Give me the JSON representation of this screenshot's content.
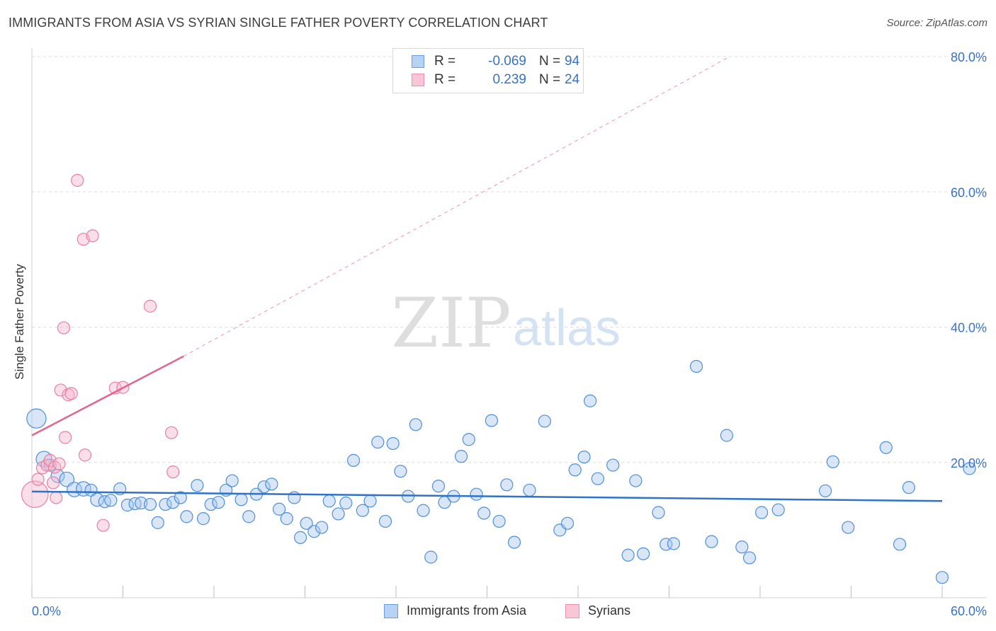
{
  "header": {
    "title": "IMMIGRANTS FROM ASIA VS SYRIAN SINGLE FATHER POVERTY CORRELATION CHART",
    "source": "Source: ZipAtlas.com"
  },
  "watermark": {
    "zip": "ZIP",
    "atlas": "atlas"
  },
  "legend_top": [
    {
      "r_label": "R =",
      "r_value": "-0.069",
      "n_label": "N =",
      "n_value": "94"
    },
    {
      "r_label": "R =",
      "r_value": "0.239",
      "n_label": "N =",
      "n_value": "24"
    }
  ],
  "legend_bottom": [
    {
      "label": "Immigrants from Asia"
    },
    {
      "label": "Syrians"
    }
  ],
  "colors": {
    "blue_fill": "#a8c8f0",
    "blue_stroke": "#4f8fd6",
    "blue_line": "#2f72c9",
    "pink_fill": "#f7b8cc",
    "pink_stroke": "#e87fa3",
    "pink_line": "#e4648f",
    "tick_label": "#3a72c4",
    "grid": "#dddddd"
  },
  "chart_data": {
    "type": "scatter",
    "title": "IMMIGRANTS FROM ASIA VS SYRIAN SINGLE FATHER POVERTY CORRELATION CHART",
    "xlabel": "",
    "ylabel": "Single Father Poverty",
    "xlim": [
      0,
      60
    ],
    "ylim": [
      0,
      80
    ],
    "x_tick_labels": [
      "0.0%",
      "60.0%"
    ],
    "y_tick_labels": [
      "20.0%",
      "40.0%",
      "60.0%",
      "80.0%"
    ],
    "y_ticks": [
      20,
      40,
      60,
      80
    ],
    "x_ticks_minor": [
      0,
      6,
      12,
      18,
      24,
      30,
      36,
      42,
      48,
      54,
      60
    ],
    "grid": true,
    "legend_placement": "top-center",
    "series": [
      {
        "name": "Immigrants from Asia",
        "color": "blue",
        "trend": {
          "x": [
            0,
            60
          ],
          "y": [
            15.7,
            14.3
          ],
          "style": "solid"
        },
        "points": [
          [
            0.3,
            26.5,
            1.6
          ],
          [
            0.8,
            20.5,
            1.3
          ],
          [
            1.2,
            19.6,
            1.0
          ],
          [
            1.7,
            18.0,
            1.1
          ],
          [
            2.3,
            17.5,
            1.2
          ],
          [
            2.8,
            16.0,
            1.2
          ],
          [
            3.4,
            16.1,
            1.2
          ],
          [
            3.9,
            15.9,
            1.0
          ],
          [
            4.3,
            14.5,
            1.1
          ],
          [
            4.8,
            14.2,
            1.0
          ],
          [
            5.2,
            14.4,
            1.0
          ],
          [
            5.8,
            16.1,
            1.0
          ],
          [
            6.3,
            13.7,
            1.0
          ],
          [
            6.8,
            13.9,
            1.0
          ],
          [
            7.2,
            14.0,
            1.0
          ],
          [
            7.8,
            13.8,
            1.0
          ],
          [
            8.3,
            11.1,
            1.0
          ],
          [
            8.8,
            13.8,
            1.0
          ],
          [
            9.3,
            14.1,
            1.0
          ],
          [
            9.8,
            14.8,
            1.0
          ],
          [
            10.2,
            12.0,
            1.0
          ],
          [
            10.9,
            16.6,
            1.0
          ],
          [
            11.3,
            11.7,
            1.0
          ],
          [
            11.8,
            13.8,
            1.0
          ],
          [
            12.3,
            14.1,
            1.0
          ],
          [
            12.8,
            15.9,
            1.0
          ],
          [
            13.2,
            17.3,
            1.0
          ],
          [
            13.8,
            14.5,
            1.0
          ],
          [
            14.3,
            12.0,
            1.0
          ],
          [
            14.8,
            15.3,
            1.0
          ],
          [
            15.3,
            16.4,
            1.0
          ],
          [
            15.8,
            16.8,
            1.0
          ],
          [
            16.3,
            13.1,
            1.0
          ],
          [
            16.8,
            11.7,
            1.0
          ],
          [
            17.3,
            14.8,
            1.0
          ],
          [
            17.7,
            8.9,
            1.0
          ],
          [
            18.1,
            11.0,
            1.0
          ],
          [
            18.6,
            9.8,
            1.0
          ],
          [
            19.1,
            10.4,
            1.0
          ],
          [
            19.6,
            14.3,
            1.0
          ],
          [
            20.2,
            12.4,
            1.0
          ],
          [
            20.7,
            14.0,
            1.0
          ],
          [
            21.2,
            20.3,
            1.0
          ],
          [
            21.8,
            12.9,
            1.0
          ],
          [
            22.3,
            14.3,
            1.0
          ],
          [
            22.8,
            23.0,
            1.0
          ],
          [
            23.3,
            11.3,
            1.0
          ],
          [
            23.8,
            22.8,
            1.0
          ],
          [
            24.3,
            18.7,
            1.0
          ],
          [
            24.8,
            15.0,
            1.0
          ],
          [
            25.3,
            25.6,
            1.0
          ],
          [
            25.8,
            12.9,
            1.0
          ],
          [
            26.3,
            6.0,
            1.0
          ],
          [
            26.8,
            16.5,
            1.0
          ],
          [
            27.2,
            14.1,
            1.0
          ],
          [
            27.8,
            15.0,
            1.0
          ],
          [
            28.3,
            20.9,
            1.0
          ],
          [
            28.8,
            23.4,
            1.0
          ],
          [
            29.3,
            15.3,
            1.0
          ],
          [
            29.8,
            12.5,
            1.0
          ],
          [
            30.3,
            26.2,
            1.0
          ],
          [
            30.8,
            11.3,
            1.0
          ],
          [
            31.3,
            16.7,
            1.0
          ],
          [
            31.8,
            8.2,
            1.0
          ],
          [
            32.8,
            15.9,
            1.0
          ],
          [
            33.8,
            26.1,
            1.0
          ],
          [
            34.8,
            10.0,
            1.0
          ],
          [
            35.3,
            11.0,
            1.0
          ],
          [
            35.8,
            18.9,
            1.0
          ],
          [
            36.4,
            20.8,
            1.0
          ],
          [
            36.8,
            29.1,
            1.0
          ],
          [
            37.3,
            17.6,
            1.0
          ],
          [
            38.3,
            19.6,
            1.0
          ],
          [
            39.3,
            6.3,
            1.0
          ],
          [
            39.8,
            17.3,
            1.0
          ],
          [
            40.3,
            6.5,
            1.0
          ],
          [
            41.3,
            12.6,
            1.0
          ],
          [
            41.8,
            7.9,
            1.0
          ],
          [
            42.3,
            8.0,
            1.0
          ],
          [
            43.8,
            34.2,
            1.0
          ],
          [
            44.8,
            8.3,
            1.0
          ],
          [
            45.8,
            24.0,
            1.0
          ],
          [
            46.8,
            7.5,
            1.0
          ],
          [
            47.3,
            5.9,
            1.0
          ],
          [
            48.1,
            12.6,
            1.0
          ],
          [
            49.2,
            13.0,
            1.0
          ],
          [
            52.3,
            15.8,
            1.0
          ],
          [
            52.8,
            20.1,
            1.0
          ],
          [
            53.8,
            10.4,
            1.0
          ],
          [
            56.3,
            22.2,
            1.0
          ],
          [
            57.8,
            16.3,
            1.0
          ],
          [
            57.2,
            7.9,
            1.0
          ],
          [
            60.0,
            3.0,
            1.0
          ],
          [
            61.8,
            19.1,
            1.0
          ]
        ]
      },
      {
        "name": "Syrians",
        "color": "pink",
        "trend": {
          "x": [
            0,
            10
          ],
          "y": [
            24.0,
            35.7
          ],
          "style": "solid",
          "extension": {
            "x": [
              10,
              46
            ],
            "y": [
              35.7,
              80.0
            ],
            "style": "dashed"
          }
        },
        "points": [
          [
            0.2,
            15.3,
            2.2
          ],
          [
            0.4,
            17.5,
            1.0
          ],
          [
            0.7,
            19.2,
            1.0
          ],
          [
            1.0,
            19.6,
            1.0
          ],
          [
            1.2,
            20.3,
            1.0
          ],
          [
            1.4,
            17.0,
            1.0
          ],
          [
            1.5,
            19.3,
            1.0
          ],
          [
            1.6,
            14.8,
            1.0
          ],
          [
            1.8,
            19.8,
            1.0
          ],
          [
            1.9,
            30.7,
            1.0
          ],
          [
            2.1,
            39.9,
            1.0
          ],
          [
            2.2,
            23.7,
            1.0
          ],
          [
            2.4,
            30.0,
            1.0
          ],
          [
            2.6,
            30.2,
            1.0
          ],
          [
            3.0,
            61.7,
            1.0
          ],
          [
            3.4,
            53.0,
            1.0
          ],
          [
            3.5,
            21.1,
            1.0
          ],
          [
            4.0,
            53.5,
            1.0
          ],
          [
            4.7,
            10.7,
            1.0
          ],
          [
            5.5,
            31.0,
            1.0
          ],
          [
            6.0,
            31.1,
            1.0
          ],
          [
            7.8,
            43.1,
            1.0
          ],
          [
            9.2,
            24.4,
            1.0
          ],
          [
            9.3,
            18.6,
            1.0
          ]
        ]
      }
    ]
  }
}
